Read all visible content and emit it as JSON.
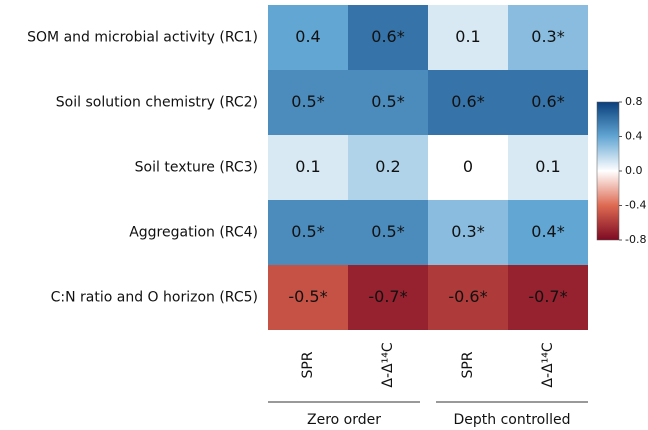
{
  "chart_data": {
    "type": "heatmap",
    "rows": [
      "SOM and microbial activity (RC1)",
      "Soil solution chemistry (RC2)",
      "Soil texture (RC3)",
      "Aggregation (RC4)",
      "C:N ratio and O horizon (RC5)"
    ],
    "columns": [
      "SPR",
      "Δ-Δ¹⁴C",
      "SPR",
      "Δ-Δ¹⁴C"
    ],
    "column_groups": [
      {
        "label": "Zero order",
        "span": 2
      },
      {
        "label": "Depth controlled",
        "span": 2
      }
    ],
    "values": [
      [
        0.4,
        0.6,
        0.1,
        0.3
      ],
      [
        0.5,
        0.5,
        0.6,
        0.6
      ],
      [
        0.1,
        0.2,
        0,
        0.1
      ],
      [
        0.5,
        0.5,
        0.3,
        0.4
      ],
      [
        -0.5,
        -0.7,
        -0.6,
        -0.7
      ]
    ],
    "value_labels": [
      [
        "0.4",
        "0.6*",
        "0.1",
        "0.3*"
      ],
      [
        "0.5*",
        "0.5*",
        "0.6*",
        "0.6*"
      ],
      [
        "0.1",
        "0.2",
        "0",
        "0.1"
      ],
      [
        "0.5*",
        "0.5*",
        "0.3*",
        "0.4*"
      ],
      [
        "-0.5*",
        "-0.7*",
        "-0.6*",
        "-0.7*"
      ]
    ],
    "colorbar_lim": [
      -0.8,
      0.8
    ],
    "colorbar_ticks": [
      0.8,
      0.4,
      {
        "value": 0,
        "label": "0.0"
      },
      -0.4,
      -0.8
    ],
    "colormap": [
      "#7d0a22",
      "#de6a52",
      "#ffffff",
      "#62a6d3",
      "#0a3f7c"
    ]
  }
}
